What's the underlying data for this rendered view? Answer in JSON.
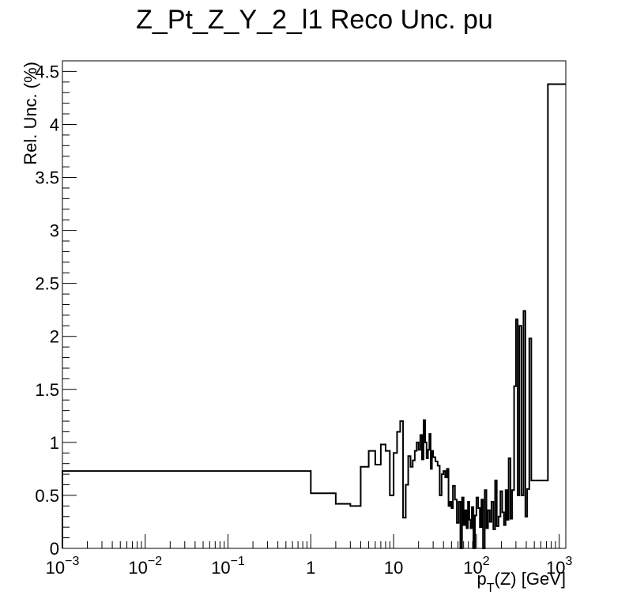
{
  "chart_data": {
    "type": "line",
    "title": "Z_Pt_Z_Y_2_l1 Reco Unc. pu",
    "xlabel": "p_T(Z) [GeV]",
    "xlabel_main": "p",
    "xlabel_sub": "T",
    "xlabel_rest": "(Z) [GeV]",
    "ylabel": "Rel. Unc. (%)",
    "xscale": "log",
    "xlim": [
      0.001,
      1200
    ],
    "ylim": [
      0,
      4.6
    ],
    "x_ticks": [
      {
        "value": 0.001,
        "base": "10",
        "exp": "−3"
      },
      {
        "value": 0.01,
        "base": "10",
        "exp": "−2"
      },
      {
        "value": 0.1,
        "base": "10",
        "exp": "−1"
      },
      {
        "value": 1,
        "base": "1",
        "exp": ""
      },
      {
        "value": 10,
        "base": "10",
        "exp": ""
      },
      {
        "value": 100,
        "base": "10",
        "exp": "2"
      },
      {
        "value": 1000,
        "base": "10",
        "exp": "3"
      }
    ],
    "y_ticks": [
      {
        "value": 0,
        "label": "0"
      },
      {
        "value": 0.5,
        "label": "0.5"
      },
      {
        "value": 1,
        "label": "1"
      },
      {
        "value": 1.5,
        "label": "1.5"
      },
      {
        "value": 2,
        "label": "2"
      },
      {
        "value": 2.5,
        "label": "2.5"
      },
      {
        "value": 3,
        "label": "3"
      },
      {
        "value": 3.5,
        "label": "3.5"
      },
      {
        "value": 4,
        "label": "4"
      },
      {
        "value": 4.5,
        "label": "4.5"
      }
    ],
    "series": [
      {
        "style": "step",
        "color": "#000000",
        "points": [
          [
            0.001,
            0.73
          ],
          [
            1.0,
            0.52
          ],
          [
            2.0,
            0.42
          ],
          [
            3.0,
            0.4
          ],
          [
            4.0,
            0.77
          ],
          [
            5.0,
            0.92
          ],
          [
            6.0,
            0.79
          ],
          [
            7.0,
            0.98
          ],
          [
            8.0,
            0.92
          ],
          [
            9.0,
            0.5
          ],
          [
            10.0,
            0.9
          ],
          [
            11.0,
            1.1
          ],
          [
            12.0,
            1.2
          ],
          [
            13.0,
            0.29
          ],
          [
            14.0,
            0.6
          ],
          [
            15.0,
            0.87
          ],
          [
            16.0,
            0.77
          ],
          [
            17.0,
            0.83
          ],
          [
            18.0,
            0.92
          ],
          [
            19.0,
            1.0
          ],
          [
            20.0,
            0.93
          ],
          [
            21.0,
            1.07
          ],
          [
            22.0,
            0.84
          ],
          [
            23.0,
            1.21
          ],
          [
            24.0,
            1.0
          ],
          [
            25.0,
            0.85
          ],
          [
            26.0,
            0.93
          ],
          [
            27.0,
            1.08
          ],
          [
            28.0,
            0.75
          ],
          [
            29.0,
            0.92
          ],
          [
            30.0,
            0.86
          ],
          [
            32.0,
            0.82
          ],
          [
            34.0,
            0.78
          ],
          [
            36.0,
            0.5
          ],
          [
            38.0,
            0.7
          ],
          [
            40.0,
            0.73
          ],
          [
            42.0,
            0.67
          ],
          [
            44.0,
            0.75
          ],
          [
            46.0,
            0.4
          ],
          [
            48.0,
            0.44
          ],
          [
            50.0,
            0.38
          ],
          [
            52.0,
            0.59
          ],
          [
            55.0,
            0.46
          ],
          [
            58.0,
            0.24
          ],
          [
            61.0,
            0.44
          ],
          [
            64.0,
            0.0
          ],
          [
            67.0,
            0.48
          ],
          [
            70.0,
            0.22
          ],
          [
            73.0,
            0.36
          ],
          [
            76.0,
            0.19
          ],
          [
            79.0,
            0.44
          ],
          [
            82.0,
            0.27
          ],
          [
            85.0,
            0.19
          ],
          [
            88.0,
            0.39
          ],
          [
            92.0,
            0.0
          ],
          [
            96.0,
            0.31
          ],
          [
            100.0,
            0.48
          ],
          [
            105.0,
            0.38
          ],
          [
            110.0,
            0.2
          ],
          [
            115.0,
            0.46
          ],
          [
            120.0,
            0.0
          ],
          [
            126.0,
            0.55
          ],
          [
            132.0,
            0.19
          ],
          [
            138.0,
            0.36
          ],
          [
            145.0,
            0.25
          ],
          [
            152.0,
            0.44
          ],
          [
            160.0,
            0.18
          ],
          [
            168.0,
            0.64
          ],
          [
            176.0,
            0.21
          ],
          [
            185.0,
            0.3
          ],
          [
            195.0,
            0.54
          ],
          [
            205.0,
            0.34
          ],
          [
            215.0,
            0.22
          ],
          [
            225.0,
            0.55
          ],
          [
            235.0,
            0.27
          ],
          [
            245.0,
            0.85
          ],
          [
            258.0,
            0.28
          ],
          [
            270.0,
            0.55
          ],
          [
            285.0,
            1.53
          ],
          [
            300.0,
            2.16
          ],
          [
            315.0,
            0.5
          ],
          [
            330.0,
            2.1
          ],
          [
            350.0,
            0.5
          ],
          [
            370.0,
            2.24
          ],
          [
            390.0,
            0.3
          ],
          [
            410.0,
            0.56
          ],
          [
            435.0,
            1.98
          ],
          [
            460.0,
            0.64
          ],
          [
            730.0,
            4.38
          ],
          [
            1200.0,
            4.38
          ]
        ]
      }
    ]
  }
}
